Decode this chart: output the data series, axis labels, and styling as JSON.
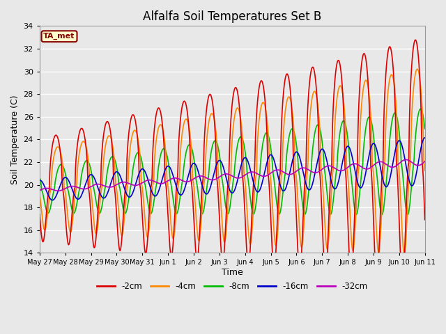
{
  "title": "Alfalfa Soil Temperatures Set B",
  "xlabel": "Time",
  "ylabel": "Soil Temperature (C)",
  "ylim": [
    14,
    34
  ],
  "yticks": [
    14,
    16,
    18,
    20,
    22,
    24,
    26,
    28,
    30,
    32,
    34
  ],
  "x_tick_labels": [
    "May 27",
    "May 28",
    "May 29",
    "May 30",
    "May 31",
    "Jun 1",
    "Jun 2",
    "Jun 3",
    "Jun 4",
    "Jun 5",
    "Jun 6",
    "Jun 7",
    "Jun 8",
    "Jun 9",
    "Jun 10",
    "Jun 11"
  ],
  "legend_labels": [
    "-2cm",
    "-4cm",
    "-8cm",
    "-16cm",
    "-32cm"
  ],
  "legend_colors": [
    "#dd0000",
    "#ff8800",
    "#00bb00",
    "#0000cc",
    "#bb00bb"
  ],
  "line_widths": [
    1.2,
    1.2,
    1.2,
    1.2,
    1.2
  ],
  "annotation_text": "TA_met",
  "annotation_color": "#880000",
  "annotation_bg": "#ffffcc",
  "background_color": "#e8e8e8",
  "grid_color": "#ffffff",
  "n_days": 15,
  "points_per_day": 48
}
